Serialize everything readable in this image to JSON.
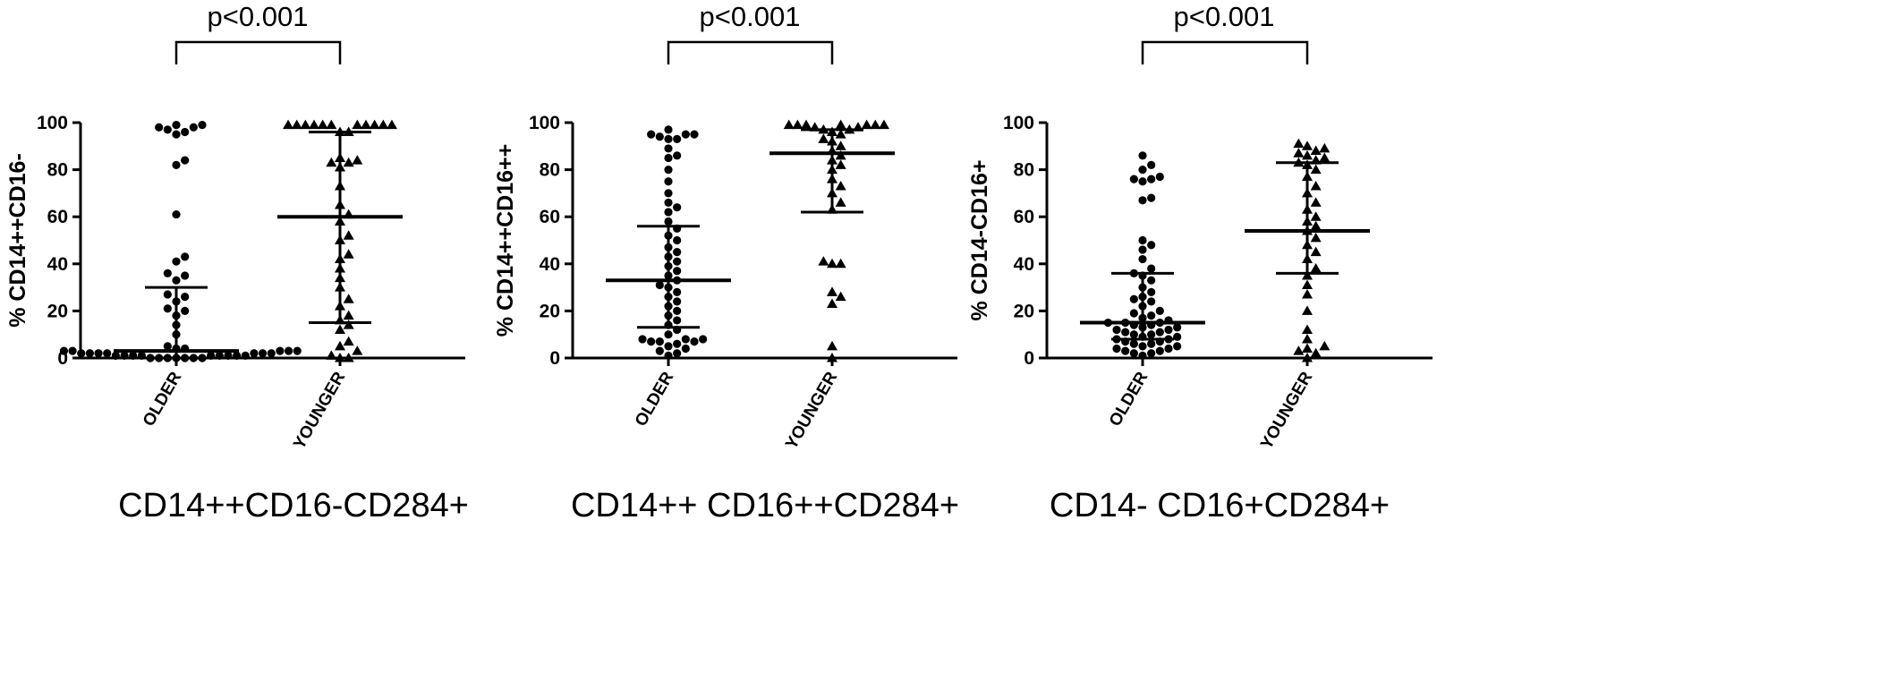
{
  "chart_data": [
    {
      "type": "scatter",
      "title": "CD14++CD16-CD284+",
      "ylabel": "% CD14++CD16-",
      "ylim": [
        0,
        100
      ],
      "yticks": [
        0,
        20,
        40,
        60,
        80,
        100
      ],
      "categories": [
        "OLDER",
        "YOUNGER"
      ],
      "significance": "p<0.001",
      "groups": [
        {
          "category": "OLDER",
          "marker": "circle",
          "median": 3,
          "iqr": [
            0,
            30
          ],
          "values": [
            99,
            97,
            96,
            98,
            95,
            98,
            99,
            84,
            82,
            61,
            43,
            41,
            36,
            35,
            33,
            27,
            26,
            24,
            21,
            20,
            18,
            14,
            10,
            5,
            4,
            4,
            3,
            3,
            3,
            3,
            3,
            2,
            2,
            2,
            2,
            2,
            2,
            2,
            1,
            1,
            1,
            1,
            1,
            1,
            1,
            1,
            1,
            0,
            0,
            0,
            0,
            0,
            0,
            0
          ]
        },
        {
          "category": "YOUNGER",
          "marker": "triangle",
          "median": 60,
          "iqr": [
            15,
            96
          ],
          "values": [
            99,
            99,
            99,
            99,
            99,
            99,
            99,
            99,
            99,
            99,
            99,
            96,
            96,
            85,
            83,
            84,
            83,
            81,
            73,
            65,
            61,
            58,
            52,
            50,
            44,
            42,
            38,
            34,
            30,
            25,
            22,
            18,
            16,
            14,
            12,
            7,
            5,
            3,
            1,
            0,
            0
          ]
        }
      ]
    },
    {
      "type": "scatter",
      "title": "CD14++ CD16++CD284+",
      "ylabel": "% CD14++CD16++",
      "ylim": [
        0,
        100
      ],
      "yticks": [
        0,
        20,
        40,
        60,
        80,
        100
      ],
      "categories": [
        "OLDER",
        "YOUNGER"
      ],
      "significance": "p<0.001",
      "groups": [
        {
          "category": "OLDER",
          "marker": "circle",
          "median": 33,
          "iqr": [
            13,
            56
          ],
          "values": [
            97,
            95,
            95,
            95,
            94,
            93,
            93,
            89,
            86,
            85,
            80,
            75,
            70,
            66,
            64,
            62,
            58,
            55,
            52,
            50,
            47,
            45,
            43,
            41,
            39,
            37,
            35,
            33,
            31,
            30,
            28,
            26,
            24,
            22,
            20,
            18,
            16,
            14,
            12,
            10,
            8,
            8,
            8,
            7,
            7,
            7,
            6,
            5,
            4,
            3,
            2,
            1
          ]
        },
        {
          "category": "YOUNGER",
          "marker": "triangle",
          "median": 87,
          "iqr": [
            62,
            97
          ],
          "values": [
            99,
            99,
            99,
            99,
            98,
            99,
            99,
            99,
            98,
            97,
            97,
            96,
            95,
            93,
            92,
            90,
            88,
            86,
            84,
            82,
            80,
            76,
            73,
            70,
            66,
            63,
            41,
            40,
            40,
            28,
            26,
            23,
            5,
            0
          ]
        }
      ]
    },
    {
      "type": "scatter",
      "title": "CD14- CD16+CD284+",
      "ylabel": "% CD14-CD16+",
      "ylim": [
        0,
        100
      ],
      "yticks": [
        0,
        20,
        40,
        60,
        80,
        100
      ],
      "categories": [
        "OLDER",
        "YOUNGER"
      ],
      "significance": "p<0.001",
      "groups": [
        {
          "category": "OLDER",
          "marker": "circle",
          "median": 15,
          "iqr": [
            8,
            36
          ],
          "values": [
            86,
            82,
            80,
            77,
            76,
            75,
            76,
            68,
            67,
            50,
            48,
            46,
            42,
            38,
            36,
            35,
            33,
            30,
            28,
            26,
            25,
            24,
            22,
            20,
            19,
            18,
            17,
            16,
            15,
            15,
            15,
            14,
            14,
            13,
            13,
            12,
            12,
            11,
            11,
            10,
            10,
            9,
            9,
            8,
            8,
            7,
            7,
            6,
            6,
            5,
            5,
            4,
            4,
            3,
            3,
            2,
            2,
            1
          ]
        },
        {
          "category": "YOUNGER",
          "marker": "triangle",
          "median": 54,
          "iqr": [
            36,
            83
          ],
          "values": [
            91,
            90,
            89,
            88,
            87,
            86,
            85,
            84,
            83,
            82,
            80,
            77,
            73,
            70,
            66,
            63,
            60,
            58,
            56,
            54,
            51,
            48,
            45,
            42,
            38,
            35,
            31,
            27,
            20,
            12,
            8,
            5,
            4,
            3,
            2,
            0
          ]
        }
      ]
    }
  ]
}
